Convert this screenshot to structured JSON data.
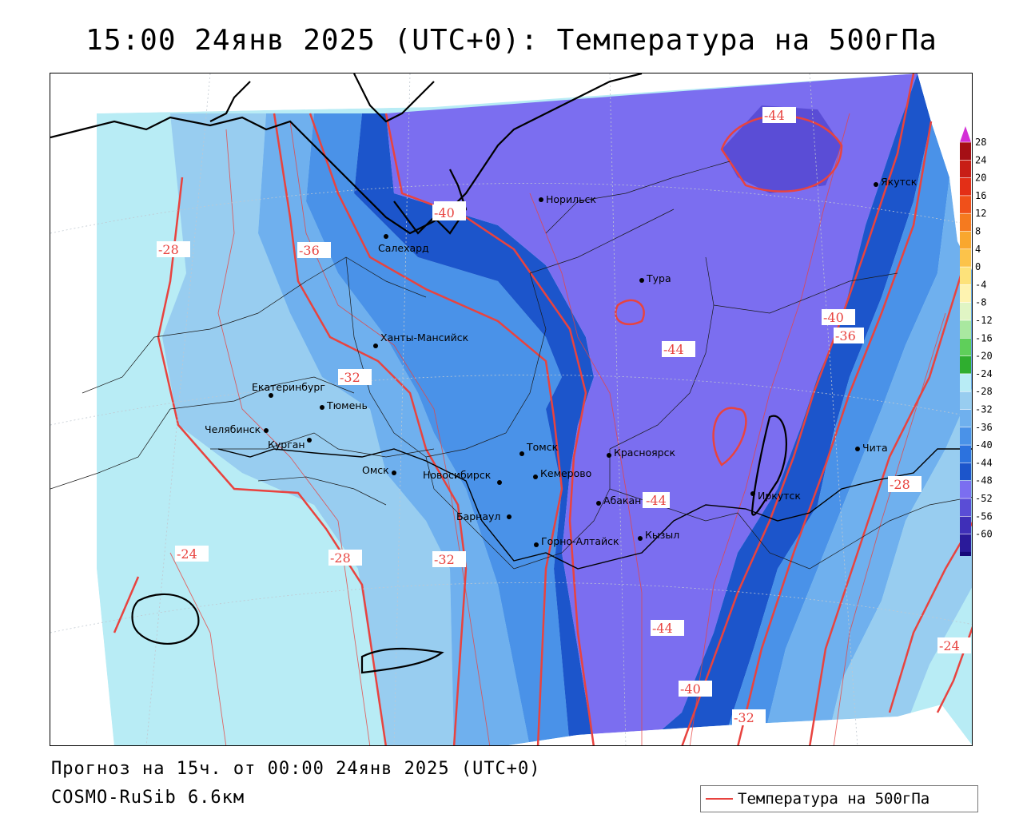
{
  "title": "15:00 24янв 2025 (UTC+0): Температура на 500гПа",
  "footer": {
    "forecast": "Прогноз на 15ч. от 00:00 24янв 2025 (UTC+0)",
    "model": "COSMO-RuSib 6.6км"
  },
  "legend": {
    "label": "Температура на 500гПа",
    "line_color": "#e8433f"
  },
  "colorbar": {
    "labels": [
      "28",
      "24",
      "20",
      "16",
      "12",
      "8",
      "4",
      "0",
      "-4",
      "-8",
      "-12",
      "-16",
      "-20",
      "-24",
      "-28",
      "-32",
      "-36",
      "-40",
      "-44",
      "-48",
      "-52",
      "-56",
      "-60"
    ],
    "colors": [
      "#a50f15",
      "#c81e16",
      "#e32f17",
      "#f0501a",
      "#f57a1f",
      "#f9a72e",
      "#fcc34a",
      "#fde27a",
      "#fef3b0",
      "#e0f5c4",
      "#a9e8a0",
      "#5fcf5a",
      "#2fae2f",
      "#b8ecf5",
      "#98cdf0",
      "#6fb0ee",
      "#4a92e8",
      "#2c72de",
      "#1c55cb",
      "#7b6ef0",
      "#5a4dd6",
      "#3f2fb8",
      "#2a1a9a",
      "#17087a"
    ],
    "tip_top_color": "#d32fd6",
    "tip_bottom_color": "#9a20c8"
  },
  "cities": [
    {
      "name": "Норильск"
    },
    {
      "name": "Салехард"
    },
    {
      "name": "Тура"
    },
    {
      "name": "Якутск"
    },
    {
      "name": "Ханты-Мансийск"
    },
    {
      "name": "Екатеринбург"
    },
    {
      "name": "Тюмень"
    },
    {
      "name": "Челябинск"
    },
    {
      "name": "Курган"
    },
    {
      "name": "Омск"
    },
    {
      "name": "Новосибирск"
    },
    {
      "name": "Томск"
    },
    {
      "name": "Кемерово"
    },
    {
      "name": "Красноярск"
    },
    {
      "name": "Барнаул"
    },
    {
      "name": "Абакан"
    },
    {
      "name": "Горно-Алтайск"
    },
    {
      "name": "Кызыл"
    },
    {
      "name": "Иркутск"
    },
    {
      "name": "Чита"
    }
  ],
  "isotherm_labels": [
    "-28",
    "-36",
    "-40",
    "-44",
    "-44",
    "-44",
    "-44",
    "-40",
    "-36",
    "-32",
    "-28",
    "-24",
    "-28",
    "-32",
    "-40",
    "-32",
    "-24"
  ]
}
